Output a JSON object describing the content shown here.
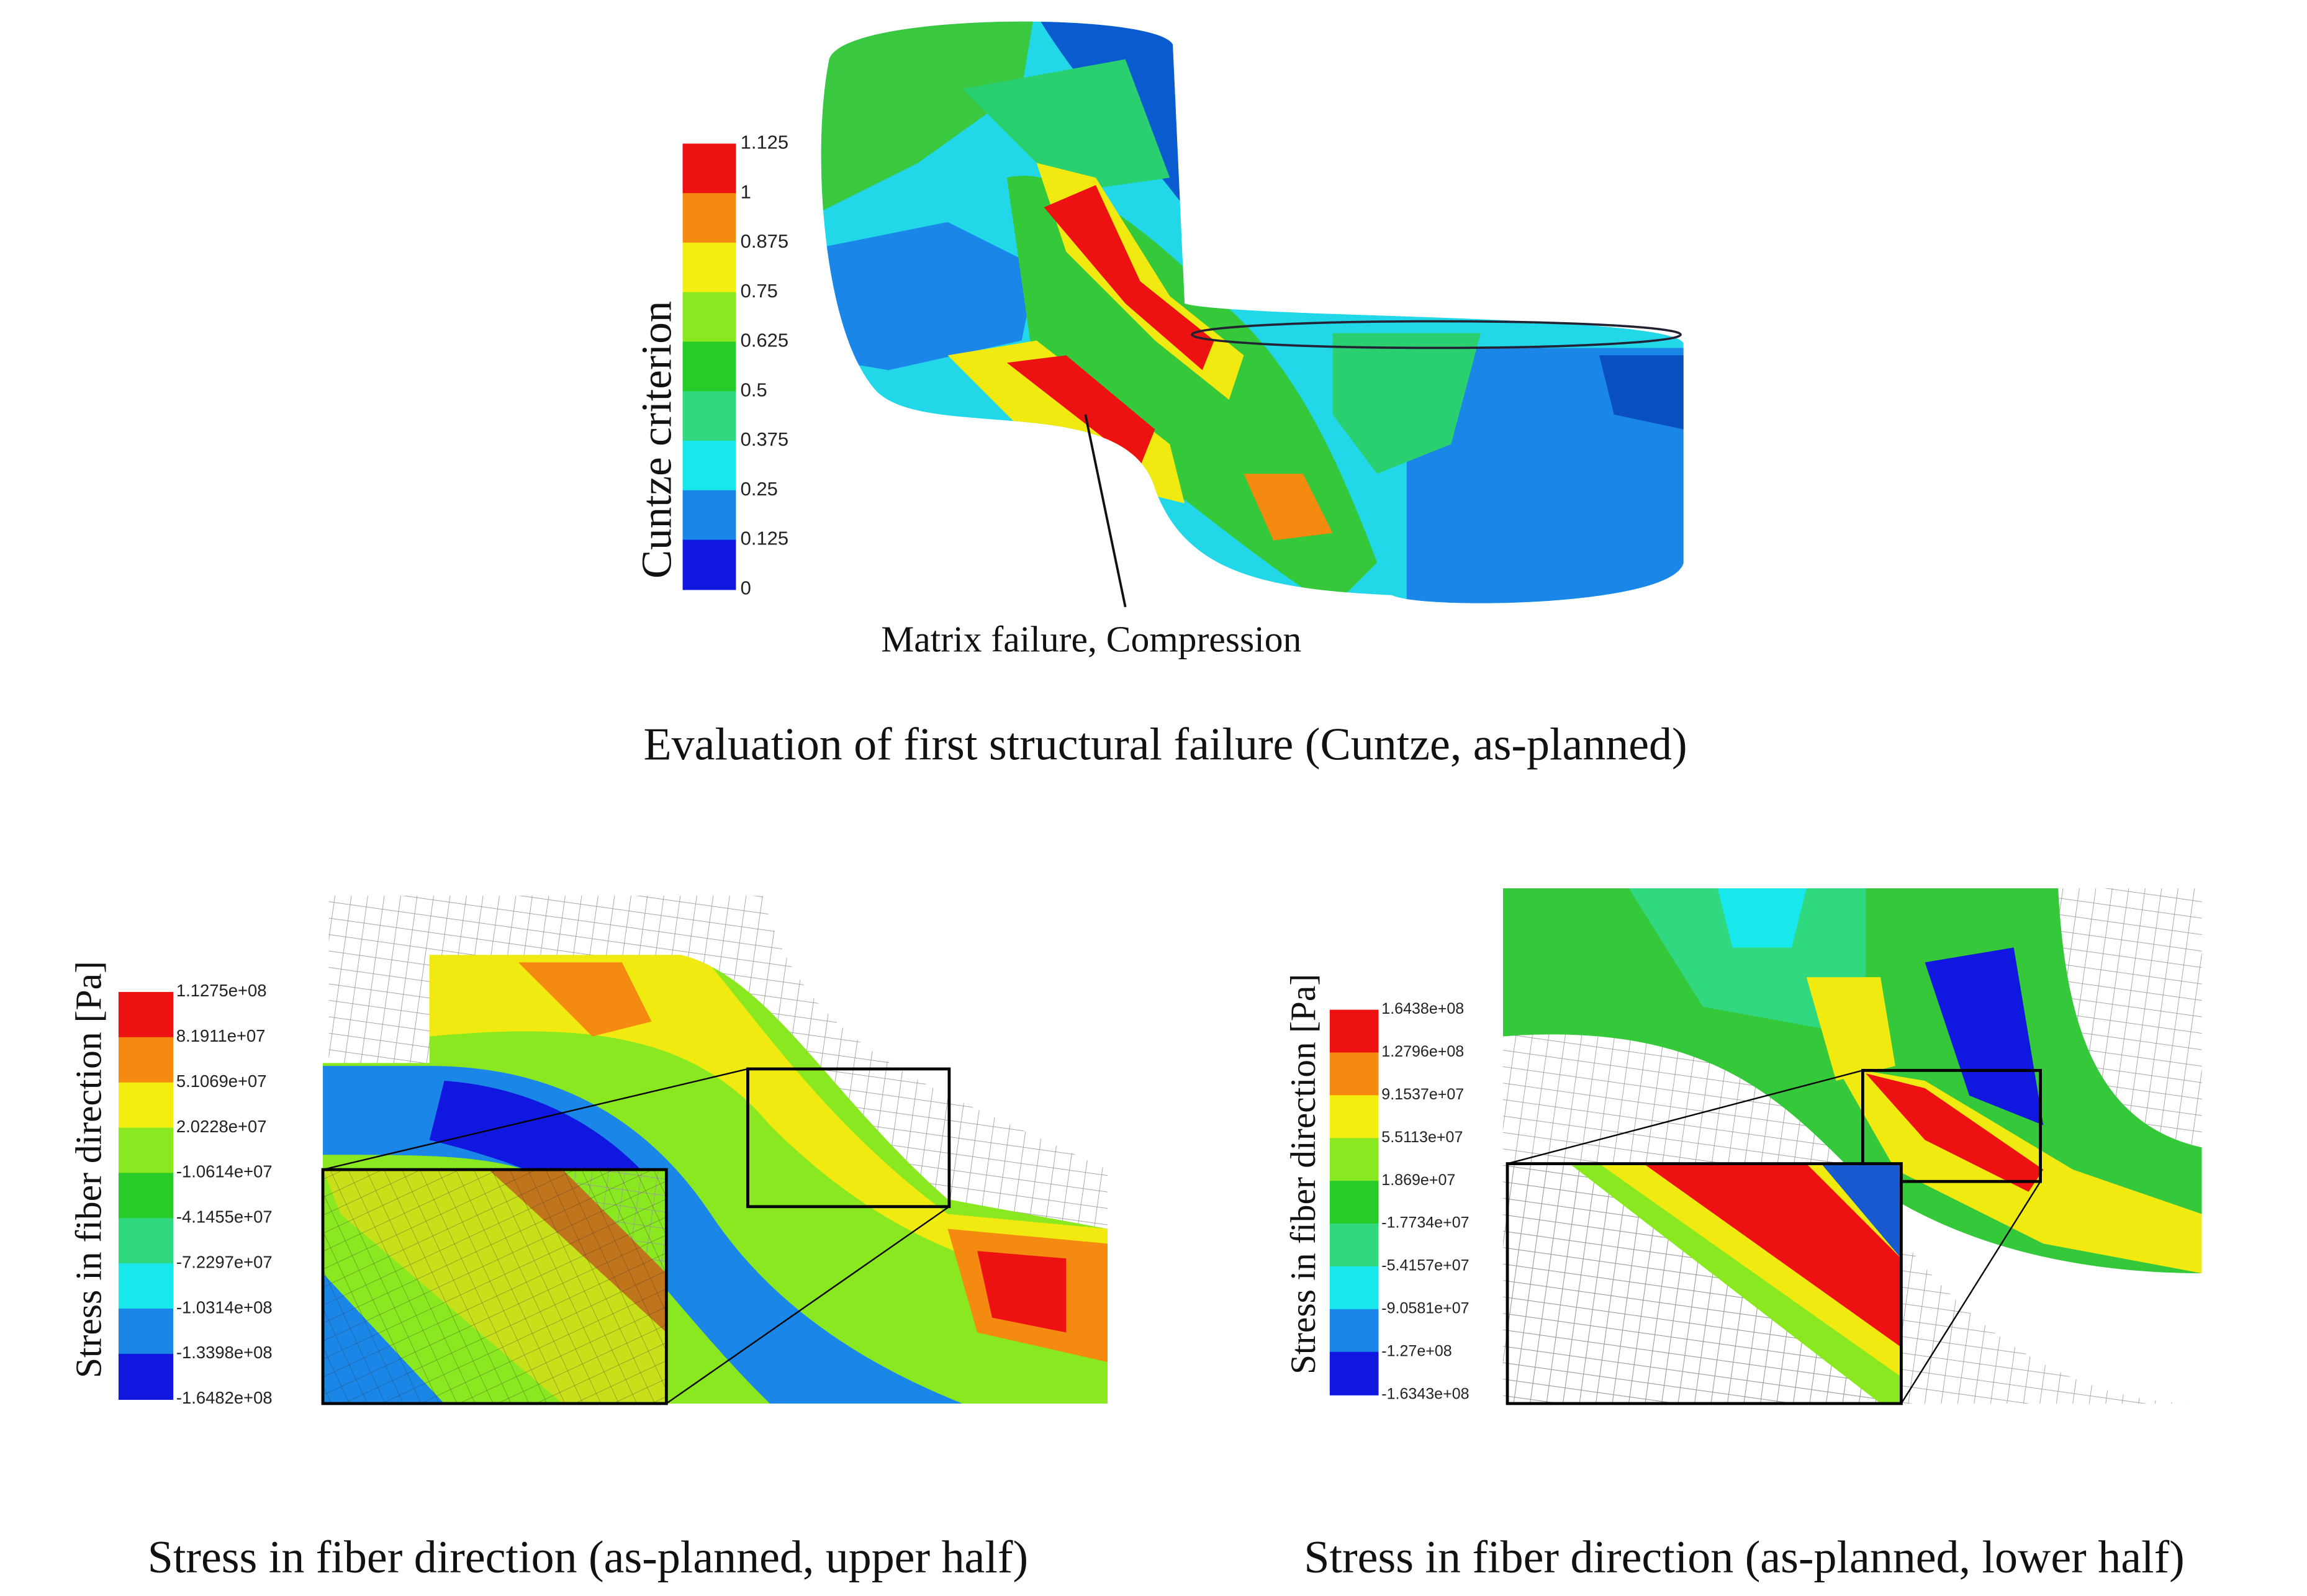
{
  "panels": [
    {
      "caption": "Evaluation of first structural failure (Cuntze, as-planned)",
      "annotation": "Matrix failure, Compression",
      "legend": {
        "title": "Cuntze criterion",
        "labels": [
          "1.125",
          "1",
          "0.875",
          "0.75",
          "0.625",
          "0.5",
          "0.375",
          "0.25",
          "0.125",
          "0"
        ],
        "colors": [
          "#ee1111",
          "#f48a10",
          "#f4ee10",
          "#8ae820",
          "#28cc28",
          "#30d880",
          "#18e8ec",
          "#1a86e8",
          "#1018e0"
        ]
      }
    },
    {
      "caption": "Stress in fiber direction (as-planned, upper half)",
      "legend": {
        "title": "Stress in fiber direction [Pa]",
        "labels": [
          "1.1275e+08",
          "8.1911e+07",
          "5.1069e+07",
          "2.0228e+07",
          "-1.0614e+07",
          "-4.1455e+07",
          "-7.2297e+07",
          "-1.0314e+08",
          "-1.3398e+08",
          "-1.6482e+08"
        ],
        "colors": [
          "#ee1111",
          "#f48a10",
          "#f4ee10",
          "#8ae820",
          "#28cc28",
          "#30d880",
          "#18e8ec",
          "#1a86e8",
          "#1018e0"
        ]
      }
    },
    {
      "caption": "Stress in fiber direction (as-planned, lower half)",
      "legend": {
        "title": "Stress in fiber direction [Pa]",
        "labels": [
          "1.6438e+08",
          "1.2796e+08",
          "9.1537e+07",
          "5.5113e+07",
          "1.869e+07",
          "-1.7734e+07",
          "-5.4157e+07",
          "-9.0581e+07",
          "-1.27e+08",
          "-1.6343e+08"
        ],
        "colors": [
          "#ee1111",
          "#f48a10",
          "#f4ee10",
          "#8ae820",
          "#28cc28",
          "#30d880",
          "#18e8ec",
          "#1a86e8",
          "#1018e0"
        ]
      }
    }
  ]
}
